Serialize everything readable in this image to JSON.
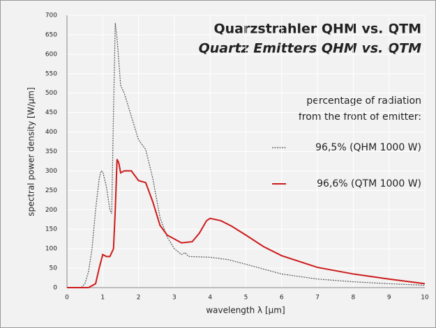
{
  "chart_data": {
    "type": "line",
    "title": "Quarzstrahler QHM vs. QTM",
    "subtitle": "Quartz Emitters QHM vs. QTM",
    "legend_title": [
      "percentage of radiation",
      "from the front of emitter:"
    ],
    "xlabel": "wavelength λ [µm]",
    "ylabel": "spectral power density [W/µm]",
    "xlim": [
      0,
      10
    ],
    "xticks": [
      0,
      1,
      2,
      3,
      4,
      5,
      6,
      7,
      8,
      9,
      10
    ],
    "ylim": [
      0,
      700
    ],
    "yticks": [
      0,
      50,
      100,
      150,
      200,
      250,
      300,
      350,
      400,
      450,
      500,
      550,
      600,
      650,
      700
    ],
    "grid": true,
    "series": [
      {
        "name": "96,5% (QHM 1000 W)",
        "color": "#555555",
        "style": "dotted",
        "x": [
          0,
          0.4,
          0.5,
          0.6,
          0.7,
          0.8,
          0.9,
          0.95,
          1.0,
          1.1,
          1.2,
          1.25,
          1.3,
          1.35,
          1.4,
          1.5,
          1.6,
          1.8,
          2.0,
          2.2,
          2.4,
          2.6,
          2.8,
          3.0,
          3.2,
          3.3,
          3.4,
          4.0,
          4.5,
          5,
          6,
          7,
          8,
          9,
          10
        ],
        "values": [
          0,
          0,
          10,
          40,
          100,
          200,
          280,
          300,
          298,
          260,
          200,
          190,
          450,
          680,
          640,
          520,
          500,
          440,
          380,
          355,
          280,
          180,
          130,
          100,
          85,
          90,
          80,
          78,
          72,
          60,
          35,
          22,
          15,
          10,
          6
        ]
      },
      {
        "name": "96,6% (QTM 1000 W)",
        "color": "#cc1a1a",
        "style": "solid",
        "x": [
          0,
          0.6,
          0.8,
          0.9,
          1.0,
          1.1,
          1.2,
          1.3,
          1.35,
          1.4,
          1.45,
          1.5,
          1.6,
          1.8,
          2.0,
          2.2,
          2.4,
          2.6,
          2.8,
          3.0,
          3.2,
          3.5,
          3.7,
          3.9,
          4.0,
          4.3,
          4.6,
          5,
          5.5,
          6,
          7,
          8,
          9,
          10
        ],
        "values": [
          0,
          0,
          10,
          50,
          85,
          80,
          80,
          100,
          200,
          330,
          320,
          295,
          300,
          300,
          275,
          270,
          220,
          160,
          135,
          125,
          115,
          118,
          140,
          172,
          178,
          172,
          158,
          135,
          105,
          82,
          52,
          35,
          22,
          10
        ]
      }
    ]
  }
}
